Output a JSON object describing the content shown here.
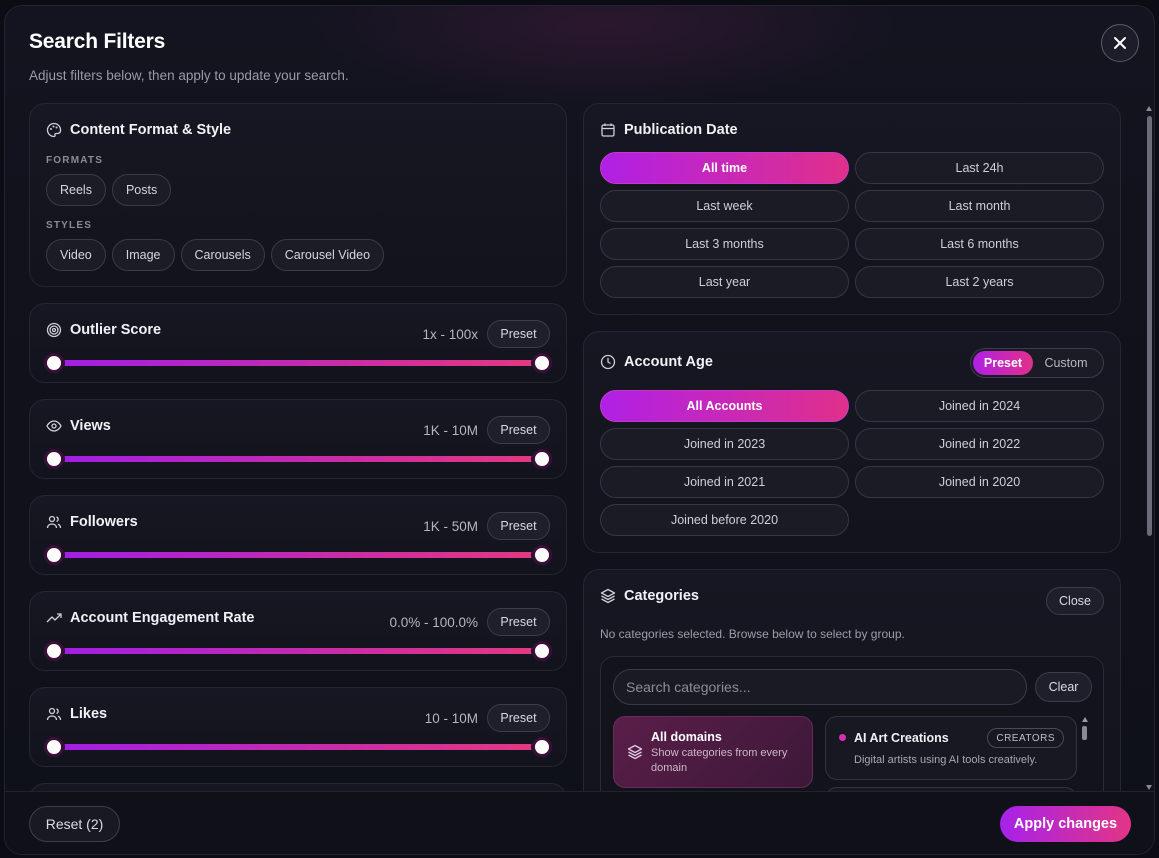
{
  "header": {
    "title": "Search Filters",
    "subtitle": "Adjust filters below, then apply to update your search."
  },
  "content_format": {
    "title": "Content Format & Style",
    "formats_label": "FORMATS",
    "formats": [
      "Reels",
      "Posts"
    ],
    "styles_label": "STYLES",
    "styles": [
      "Video",
      "Image",
      "Carousels",
      "Carousel Video"
    ]
  },
  "sliders": [
    {
      "title": "Outlier Score",
      "range": "1x - 100x",
      "preset_label": "Preset",
      "icon": "target-icon",
      "low": 0,
      "high": 1
    },
    {
      "title": "Views",
      "range": "1K - 10M",
      "preset_label": "Preset",
      "icon": "eye-icon",
      "low": 0,
      "high": 1
    },
    {
      "title": "Followers",
      "range": "1K - 50M",
      "preset_label": "Preset",
      "icon": "users-icon",
      "low": 0,
      "high": 1
    },
    {
      "title": "Account Engagement Rate",
      "range": "0.0% - 100.0%",
      "preset_label": "Preset",
      "icon": "trending-up-icon",
      "low": 0,
      "high": 1
    },
    {
      "title": "Likes",
      "range": "10 - 10M",
      "preset_label": "Preset",
      "icon": "users-icon",
      "low": 0,
      "high": 1
    }
  ],
  "publication_date": {
    "title": "Publication Date",
    "options": [
      "All time",
      "Last 24h",
      "Last week",
      "Last month",
      "Last 3 months",
      "Last 6 months",
      "Last year",
      "Last 2 years"
    ],
    "selected": "All time"
  },
  "account_age": {
    "title": "Account Age",
    "mode_preset": "Preset",
    "mode_custom": "Custom",
    "options": [
      "All Accounts",
      "Joined in 2024",
      "Joined in 2023",
      "Joined in 2022",
      "Joined in 2021",
      "Joined in 2020",
      "Joined before 2020"
    ],
    "selected": "All Accounts"
  },
  "categories": {
    "title": "Categories",
    "close_label": "Close",
    "note": "No categories selected. Browse below to select by group.",
    "search_placeholder": "Search categories...",
    "clear_label": "Clear",
    "domain_title": "All domains",
    "domain_desc": "Show categories from every domain",
    "card_title": "AI Art Creations",
    "card_badge": "CREATORS",
    "card_desc": "Digital artists using AI tools creatively."
  },
  "footer": {
    "reset_label": "Reset (2)",
    "apply_label": "Apply changes"
  },
  "colors": {
    "accent_start": "#a622ea",
    "accent_end": "#e33486",
    "background": "#0c0d14"
  }
}
